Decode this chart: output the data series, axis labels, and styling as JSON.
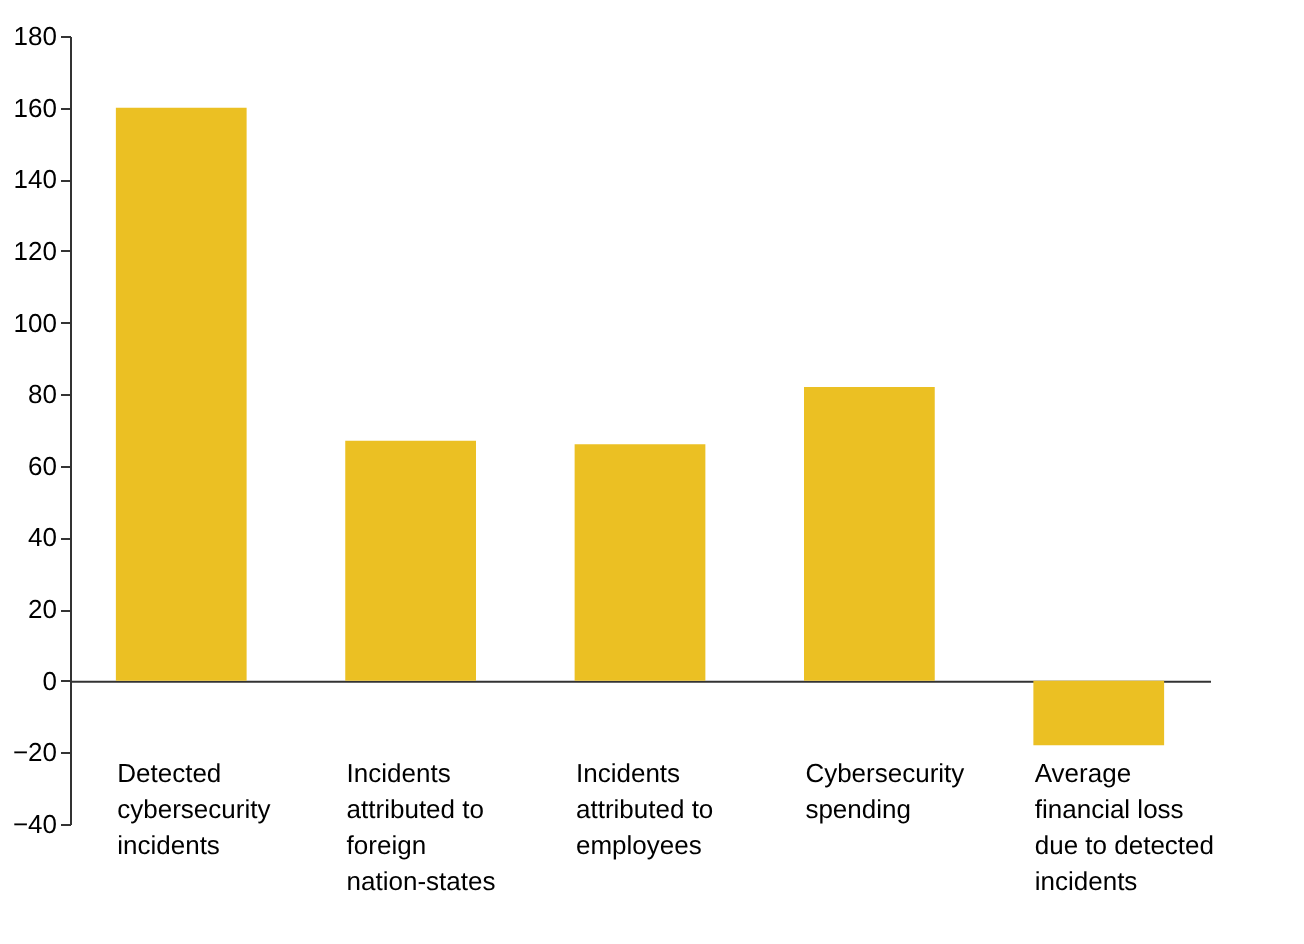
{
  "chart_data": {
    "type": "bar",
    "categories": [
      "Detected cybersecurity incidents",
      "Incidents attributed to foreign nation-states",
      "Incidents attributed to employees",
      "Cybersecurity spending",
      "Average financial loss due to detected incidents"
    ],
    "values": [
      160,
      67,
      66,
      82,
      -18
    ],
    "color": "#ebc023",
    "yticks": [
      -40,
      -20,
      0,
      20,
      40,
      60,
      80,
      100,
      120,
      140,
      160,
      180
    ],
    "ylim": [
      -40,
      180
    ]
  }
}
